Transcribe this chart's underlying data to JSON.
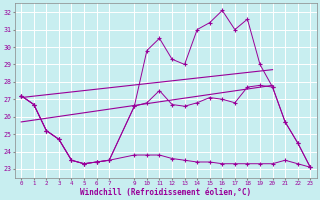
{
  "xlabel": "Windchill (Refroidissement éolien,°C)",
  "bg_color": "#c8eef0",
  "grid_color": "#ffffff",
  "line_color": "#990099",
  "xlim": [
    -0.5,
    23.5
  ],
  "ylim": [
    22.5,
    32.5
  ],
  "xticks": [
    0,
    1,
    2,
    3,
    4,
    5,
    6,
    7,
    9,
    10,
    11,
    12,
    13,
    14,
    15,
    16,
    17,
    18,
    19,
    20,
    21,
    22,
    23
  ],
  "yticks": [
    23,
    24,
    25,
    26,
    27,
    28,
    29,
    30,
    31,
    32
  ],
  "line_upper_x": [
    0,
    1,
    2,
    3,
    4,
    5,
    6,
    7,
    9,
    10,
    11,
    12,
    13,
    14,
    15,
    16,
    17,
    18,
    19,
    20,
    21,
    22,
    23
  ],
  "line_upper_y": [
    27.2,
    26.7,
    25.2,
    24.7,
    23.5,
    23.3,
    23.4,
    23.5,
    26.6,
    29.8,
    30.5,
    29.3,
    29.0,
    31.0,
    31.4,
    32.1,
    31.0,
    31.6,
    29.0,
    27.7,
    25.7,
    24.5,
    23.1
  ],
  "line_mid_x": [
    0,
    1,
    2,
    3,
    4,
    5,
    6,
    7,
    9,
    10,
    11,
    12,
    13,
    14,
    15,
    16,
    17,
    18,
    19,
    20,
    21,
    22,
    23
  ],
  "line_mid_y": [
    27.2,
    26.7,
    25.2,
    24.7,
    23.5,
    23.3,
    23.4,
    23.5,
    26.6,
    26.8,
    27.5,
    26.7,
    26.6,
    26.8,
    27.1,
    27.0,
    26.8,
    27.7,
    27.8,
    27.7,
    25.7,
    24.5,
    23.1
  ],
  "line_lower_x": [
    0,
    1,
    2,
    3,
    4,
    5,
    6,
    7,
    9,
    10,
    11,
    12,
    13,
    14,
    15,
    16,
    17,
    18,
    19,
    20,
    21,
    22,
    23
  ],
  "line_lower_y": [
    27.2,
    26.7,
    25.2,
    24.7,
    23.5,
    23.3,
    23.4,
    23.5,
    23.8,
    23.8,
    23.8,
    23.6,
    23.5,
    23.4,
    23.4,
    23.3,
    23.3,
    23.3,
    23.3,
    23.3,
    23.5,
    23.3,
    23.1
  ],
  "trend1_x": [
    0,
    20
  ],
  "trend1_y": [
    27.1,
    28.7
  ],
  "trend2_x": [
    0,
    20
  ],
  "trend2_y": [
    25.7,
    27.8
  ]
}
